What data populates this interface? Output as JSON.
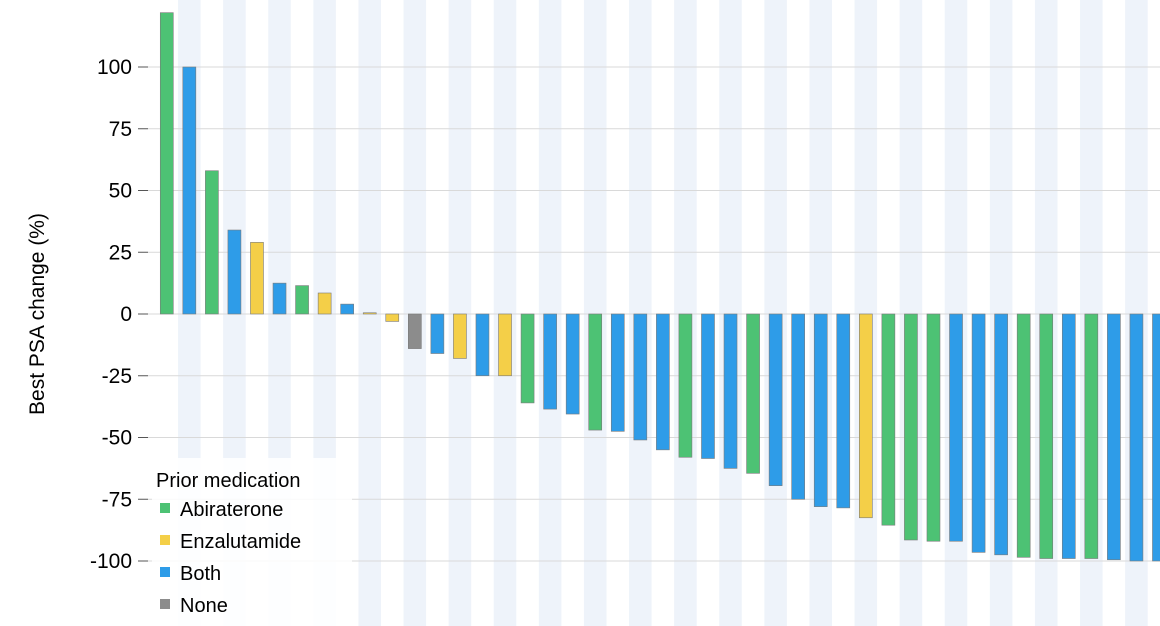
{
  "chart_data": {
    "type": "bar",
    "title": "",
    "xlabel": "",
    "ylabel": "Best PSA change (%)",
    "ylim": [
      -100,
      120
    ],
    "yticks": [
      100,
      75,
      50,
      25,
      0,
      -25,
      -50,
      -75,
      -100
    ],
    "grid": "horizontal",
    "alternating_column_shading": true,
    "legend": {
      "title": "Prior medication",
      "placement": "bottom-left",
      "entries": [
        {
          "key": "abiraterone",
          "label": "Abiraterone",
          "color": "#4DC274"
        },
        {
          "key": "enzalutamide",
          "label": "Enzalutamide",
          "color": "#F4CF48"
        },
        {
          "key": "both",
          "label": "Both",
          "color": "#2E9CE8"
        },
        {
          "key": "none",
          "label": "None",
          "color": "#8C8C8C"
        }
      ]
    },
    "values": [
      122,
      100,
      58,
      34,
      29,
      12.5,
      11.5,
      8.5,
      4,
      0.5,
      -3,
      -14,
      -16,
      -18,
      -25,
      -25,
      -36,
      -38.5,
      -40.5,
      -47,
      -47.5,
      -51,
      -55,
      -58,
      -58.5,
      -62.5,
      -64.5,
      -69.5,
      -75,
      -78,
      -78.5,
      -82.5,
      -85.5,
      -91.5,
      -92,
      -92,
      -96.5,
      -97.5,
      -98.5,
      -99,
      -99,
      -99,
      -99.5,
      -100,
      -100,
      -100
    ],
    "groups": [
      "abiraterone",
      "both",
      "abiraterone",
      "both",
      "enzalutamide",
      "both",
      "abiraterone",
      "enzalutamide",
      "both",
      "enzalutamide",
      "enzalutamide",
      "none",
      "both",
      "enzalutamide",
      "both",
      "enzalutamide",
      "abiraterone",
      "both",
      "both",
      "abiraterone",
      "both",
      "both",
      "both",
      "abiraterone",
      "both",
      "both",
      "abiraterone",
      "both",
      "both",
      "both",
      "both",
      "enzalutamide",
      "abiraterone",
      "abiraterone",
      "abiraterone",
      "both",
      "both",
      "both",
      "abiraterone",
      "abiraterone",
      "both",
      "abiraterone",
      "both",
      "both",
      "both",
      "both"
    ]
  }
}
